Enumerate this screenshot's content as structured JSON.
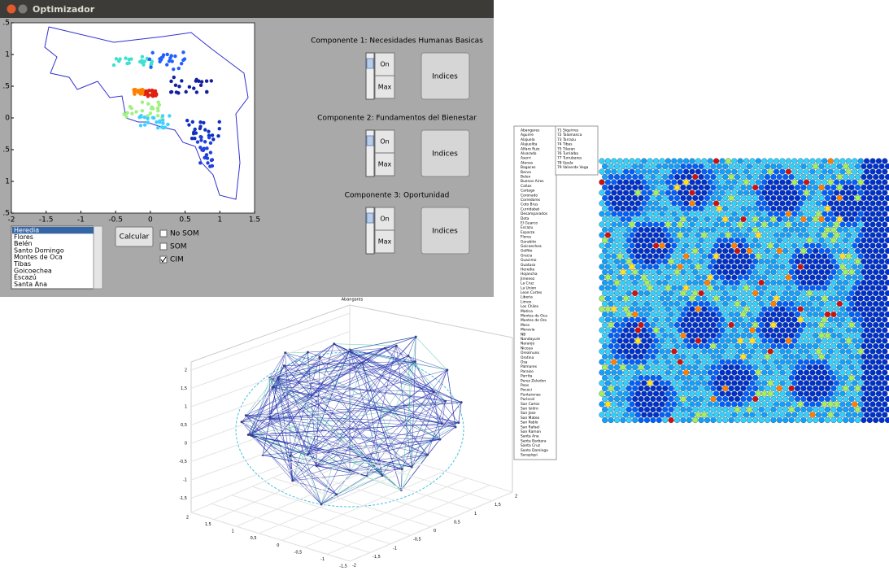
{
  "window": {
    "title": "Optimizador"
  },
  "plot": {
    "xlim": [
      -2,
      1.5
    ],
    "ylim": [
      -1.5,
      1.5
    ],
    "xticks": [
      -2,
      -1.5,
      -1,
      -0.5,
      0,
      0.5,
      1,
      1.5
    ],
    "yticks": [
      {
        "value": 1.5,
        "label": ".5"
      },
      {
        "value": 1,
        "label": "1"
      },
      {
        "value": 0.5,
        "label": ".5"
      },
      0,
      {
        "value": -0.5,
        "label": ".5"
      },
      {
        "value": -1,
        "label": "1"
      },
      {
        "value": -1.5,
        "label": ".5"
      }
    ]
  },
  "components": [
    {
      "label": "Componente 1: Necesidades Humanas Basicas",
      "on": "On",
      "max": "Max",
      "button": "Indices"
    },
    {
      "label": "Componente 2: Fundamentos del Bienestar",
      "on": "On",
      "max": "Max",
      "button": "Indices"
    },
    {
      "label": "Componente 3: Oportunidad",
      "on": "On",
      "max": "Max",
      "button": "Indices"
    }
  ],
  "calcular": "Calcular",
  "checkboxes": [
    {
      "label": "No SOM",
      "checked": false
    },
    {
      "label": "SOM",
      "checked": false
    },
    {
      "label": "CIM",
      "checked": true
    }
  ],
  "listbox": {
    "items": [
      "Heredia",
      "Flores",
      "Belén",
      "Santo Domingo",
      "Montes de Oca",
      "Tibas",
      "Goicoechea",
      "Escazú",
      "Santa Ana"
    ],
    "selected": 0
  },
  "cantons": {
    "column1": [
      "Abangares",
      "Aguirre",
      "Alajuela",
      "Alajuelita",
      "Alfaro Ruiz",
      "Alvarado",
      "Aserri",
      "Atenas",
      "Bagaces",
      "Barva",
      "Belen",
      "Buenos Aires",
      "Cañas",
      "Cartago",
      "Coronado",
      "Corredores",
      "Coto Brus",
      "Curridabat",
      "Desamparados",
      "Dota",
      "El Guarco",
      "Escazu",
      "Esparza",
      "Flores",
      "Garabito",
      "Goicoechea",
      "Golfito",
      "Grecia",
      "Guacimo",
      "Guatuso",
      "Heredia",
      "Hojancha",
      "Jimenez",
      "La Cruz",
      "La Union",
      "Leon Cortes",
      "Liberia",
      "Limon",
      "Los Chiles",
      "Matina",
      "Montes de Oca",
      "Montes de Oro",
      "Mora",
      "Moravia",
      "NB",
      "Nandayure",
      "Naranjo",
      "Nicoya",
      "Oreamuno",
      "Orotina",
      "Osa",
      "Palmares",
      "Paraiso",
      "Parrita",
      "Perez Zeledon",
      "Poas",
      "Pococi",
      "Puntarenas",
      "Puriscal",
      "San Carlos",
      "San Isidro",
      "San Jose",
      "San Mateo",
      "San Pablo",
      "San Rafael",
      "San Ramon",
      "Santa Ana",
      "Santa Barbara",
      "Santa Cruz",
      "Santo Domingo",
      "Sarapiqui"
    ],
    "column2": [
      "71 Siquirres",
      "72 Talamanca",
      "73 Tarrazu",
      "74 Tibas",
      "75 Tilaran",
      "76 Turrialba",
      "77 Turrubares",
      "78 Upala",
      "79 Valverde Vega"
    ]
  },
  "network": {
    "title": "Abangares",
    "zticks": [
      2,
      {
        "value": 1.5,
        "label": "1,5"
      },
      1,
      {
        "value": 0.5,
        "label": "0,5"
      },
      0,
      {
        "value": -0.5,
        "label": "-0,5"
      },
      -1,
      {
        "value": -1.5,
        "label": "-1,5"
      }
    ],
    "xticks": [
      2,
      {
        "value": 1.5,
        "label": "1,5"
      },
      1,
      {
        "value": 0.5,
        "label": "0,5"
      },
      0,
      {
        "value": -0.5,
        "label": "-0,5"
      },
      -1,
      {
        "value": -1.5,
        "label": "-1,5"
      }
    ],
    "yticks": [
      2,
      {
        "value": 1.5,
        "label": "1,5"
      },
      1,
      {
        "value": 0.5,
        "label": "0,5"
      },
      0,
      {
        "value": -0.5,
        "label": "-0,5"
      },
      -1,
      {
        "value": -1.5,
        "label": "-1,5"
      },
      -2
    ]
  }
}
